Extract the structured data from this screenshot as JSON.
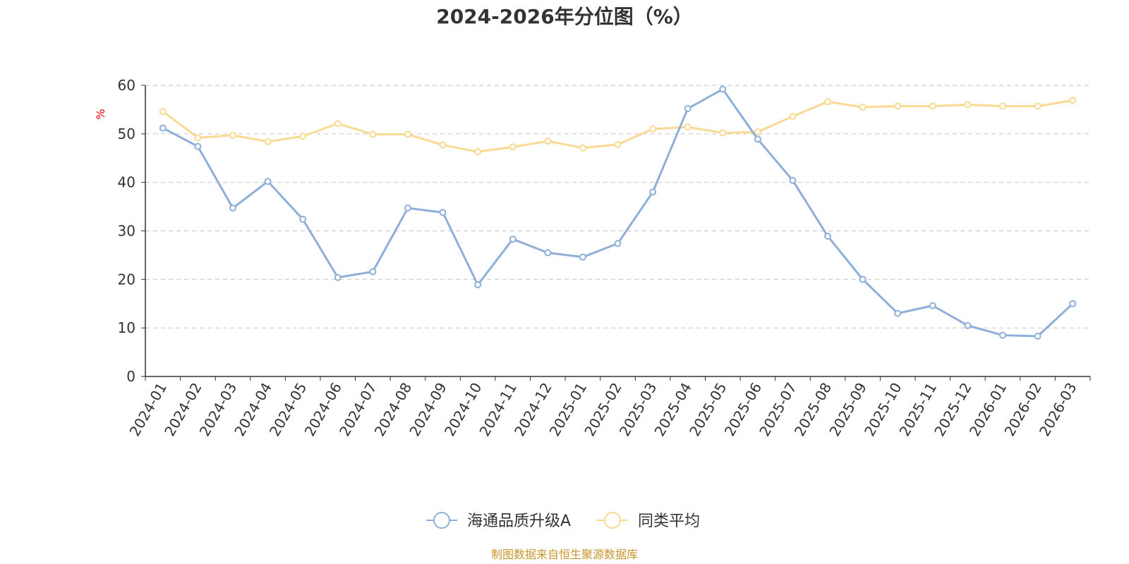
{
  "chart_data": {
    "type": "line",
    "title": "2024-2026年分位图（%）",
    "ylabel": "%",
    "xlabel": "",
    "ylim": [
      0,
      60
    ],
    "yticks": [
      0,
      10,
      20,
      30,
      40,
      50,
      60
    ],
    "grid": true,
    "legend_position": "bottom-center",
    "categories": [
      "2024-01",
      "2024-02",
      "2024-03",
      "2024-04",
      "2024-05",
      "2024-06",
      "2024-07",
      "2024-08",
      "2024-09",
      "2024-10",
      "2024-11",
      "2024-12",
      "2025-01",
      "2025-02",
      "2025-03",
      "2025-04",
      "2025-05",
      "2025-06",
      "2025-07",
      "2025-08",
      "2025-09",
      "2025-10",
      "2025-11",
      "2025-12",
      "2026-01",
      "2026-02",
      "2026-03"
    ],
    "series": [
      {
        "name": "海通品质升级A",
        "color": "#8eb0d8",
        "values": [
          51.2,
          47.4,
          34.7,
          40.2,
          32.4,
          20.4,
          21.6,
          34.7,
          33.8,
          18.9,
          28.3,
          25.5,
          24.6,
          27.4,
          38.0,
          55.2,
          59.2,
          48.9,
          40.4,
          28.9,
          20.0,
          13.0,
          14.6,
          10.5,
          8.5,
          8.3,
          15.0
        ]
      },
      {
        "name": "同类平均",
        "color": "#fad992",
        "values": [
          54.6,
          49.2,
          49.7,
          48.4,
          49.5,
          52.1,
          49.9,
          49.9,
          47.7,
          46.3,
          47.3,
          48.5,
          47.1,
          47.8,
          51.0,
          51.4,
          50.2,
          50.4,
          53.6,
          56.6,
          55.5,
          55.7,
          55.7,
          56.0,
          55.7,
          55.7,
          56.9
        ]
      }
    ]
  },
  "source_note": "制图数据来自恒生聚源数据库"
}
